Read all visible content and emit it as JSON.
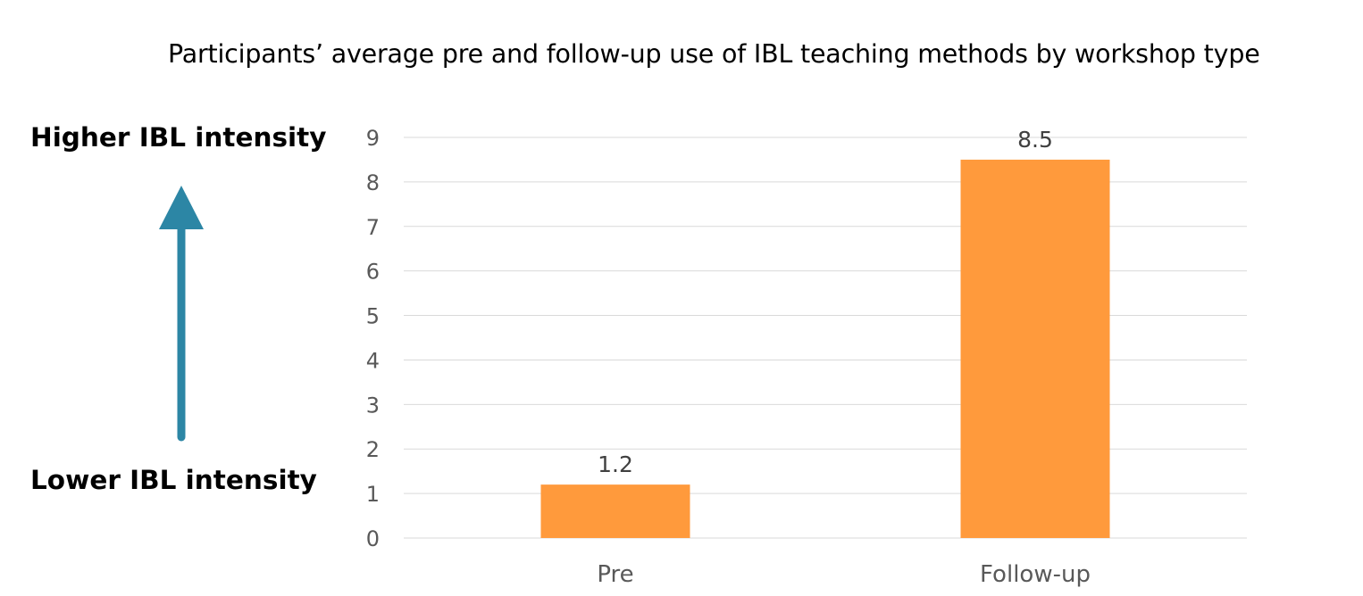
{
  "chart_data": {
    "type": "bar",
    "title": "Participants’ average pre and follow-up use of IBL teaching methods by workshop type",
    "categories": [
      "Pre",
      "Follow-up"
    ],
    "values": [
      1.2,
      8.5
    ],
    "data_labels": [
      "1.2",
      "8.5"
    ],
    "y_ticks": [
      "0",
      "1",
      "2",
      "3",
      "4",
      "5",
      "6",
      "7",
      "8",
      "9"
    ],
    "ylim": [
      0,
      9
    ],
    "grid": true,
    "xlabel": "",
    "ylabel": ""
  },
  "annotations": {
    "higher_label": "Higher IBL intensity",
    "lower_label": "Lower IBL intensity"
  },
  "colors": {
    "bar": "#FF9A3C",
    "arrow": "#2C86A5",
    "grid": "#D9D9D9"
  },
  "icons": {
    "arrow": "up-arrow-icon"
  }
}
